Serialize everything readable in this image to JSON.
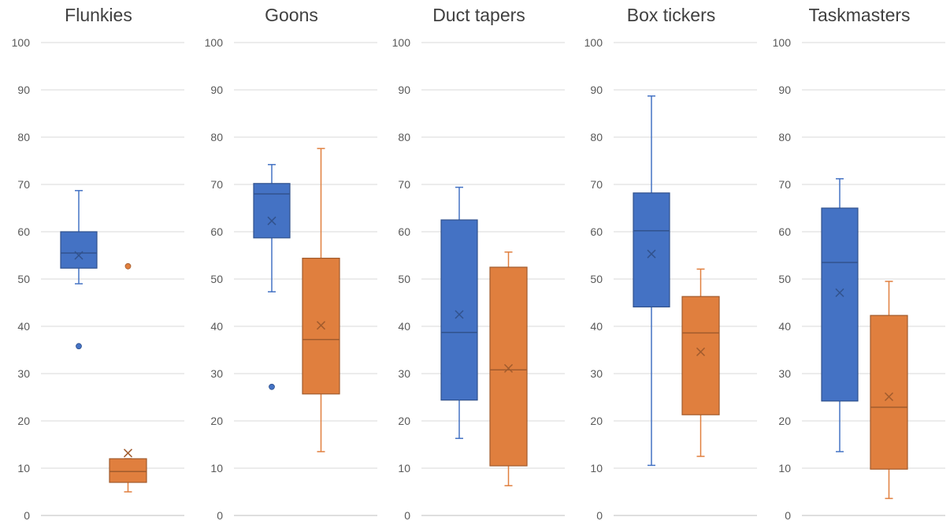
{
  "colors": {
    "series1": "#4472C4",
    "series2": "#E07F3E",
    "grid": "#d9d9d9",
    "axis_text": "#595959"
  },
  "chart_data": [
    {
      "type": "box",
      "title": "Flunkies",
      "ylim": [
        0,
        100
      ],
      "yticks": [
        "0",
        "10",
        "20",
        "30",
        "40",
        "50",
        "60",
        "70",
        "80",
        "90",
        "100"
      ],
      "grid": true,
      "series": [
        {
          "color": "#4472C4",
          "min": 49,
          "q1": 52.3,
          "median": 55.5,
          "q3": 60,
          "max": 68.7,
          "mean": 55,
          "outliers": [
            35.8
          ]
        },
        {
          "color": "#E07F3E",
          "min": 5,
          "q1": 7,
          "median": 9.3,
          "q3": 12,
          "max": 12,
          "mean": 13.2,
          "outliers": [
            52.7
          ]
        }
      ]
    },
    {
      "type": "box",
      "title": "Goons",
      "ylim": [
        0,
        100
      ],
      "yticks": [
        "0",
        "10",
        "20",
        "30",
        "40",
        "50",
        "60",
        "70",
        "80",
        "90",
        "100"
      ],
      "grid": true,
      "series": [
        {
          "color": "#4472C4",
          "min": 47.3,
          "q1": 58.7,
          "median": 68,
          "q3": 70.2,
          "max": 74.2,
          "mean": 62.3,
          "outliers": [
            27.2
          ]
        },
        {
          "color": "#E07F3E",
          "min": 13.5,
          "q1": 25.7,
          "median": 37.2,
          "q3": 54.4,
          "max": 77.6,
          "mean": 40.2,
          "outliers": []
        }
      ]
    },
    {
      "type": "box",
      "title": "Duct tapers",
      "ylim": [
        0,
        100
      ],
      "yticks": [
        "0",
        "10",
        "20",
        "30",
        "40",
        "50",
        "60",
        "70",
        "80",
        "90",
        "100"
      ],
      "grid": true,
      "series": [
        {
          "color": "#4472C4",
          "min": 16.3,
          "q1": 24.4,
          "median": 38.7,
          "q3": 62.5,
          "max": 69.4,
          "mean": 42.5,
          "outliers": []
        },
        {
          "color": "#E07F3E",
          "min": 6.3,
          "q1": 10.5,
          "median": 30.8,
          "q3": 52.5,
          "max": 55.7,
          "mean": 31.1,
          "outliers": []
        }
      ]
    },
    {
      "type": "box",
      "title": "Box tickers",
      "ylim": [
        0,
        100
      ],
      "yticks": [
        "0",
        "10",
        "20",
        "30",
        "40",
        "50",
        "60",
        "70",
        "80",
        "90",
        "100"
      ],
      "grid": true,
      "series": [
        {
          "color": "#4472C4",
          "min": 10.6,
          "q1": 44.1,
          "median": 60.2,
          "q3": 68.2,
          "max": 88.7,
          "mean": 55.3,
          "outliers": []
        },
        {
          "color": "#E07F3E",
          "min": 12.5,
          "q1": 21.3,
          "median": 38.6,
          "q3": 46.3,
          "max": 52.1,
          "mean": 34.6,
          "outliers": []
        }
      ]
    },
    {
      "type": "box",
      "title": "Taskmasters",
      "ylim": [
        0,
        100
      ],
      "yticks": [
        "0",
        "10",
        "20",
        "30",
        "40",
        "50",
        "60",
        "70",
        "80",
        "90",
        "100"
      ],
      "grid": true,
      "series": [
        {
          "color": "#4472C4",
          "min": 13.5,
          "q1": 24.2,
          "median": 53.5,
          "q3": 65,
          "max": 71.2,
          "mean": 47.1,
          "outliers": []
        },
        {
          "color": "#E07F3E",
          "min": 3.6,
          "q1": 9.8,
          "median": 22.9,
          "q3": 42.3,
          "max": 49.5,
          "mean": 25.1,
          "outliers": []
        }
      ]
    }
  ]
}
